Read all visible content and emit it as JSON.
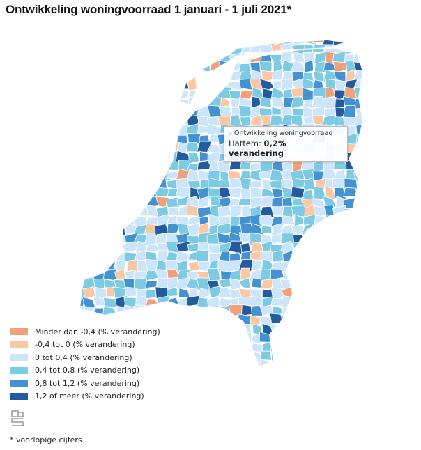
{
  "title": "Ontwikkeling woningvoorraad 1 januari - 1 juli 2021*",
  "tooltip": {
    "series": "Ontwikkeling woningvoorraad",
    "municipality": "Hattem:",
    "value": "0,2% verandering"
  },
  "legend": [
    {
      "label": "Minder dan -0,4 (% verandering)",
      "color": "#f2a07a"
    },
    {
      "label": "-0,4 tot 0 (% verandering)",
      "color": "#fcc7a3"
    },
    {
      "label": "0 tot 0,4 (% verandering)",
      "color": "#cde5fa"
    },
    {
      "label": "0,4 tot 0,8 (% verandering)",
      "color": "#7dcbe2"
    },
    {
      "label": "0,8 tot 1,2 (% verandering)",
      "color": "#4492d1"
    },
    {
      "label": "1,2 of meer (% verandering)",
      "color": "#235b9e"
    }
  ],
  "logo": "cbs",
  "footnote": "* voorlopige cijfers"
}
